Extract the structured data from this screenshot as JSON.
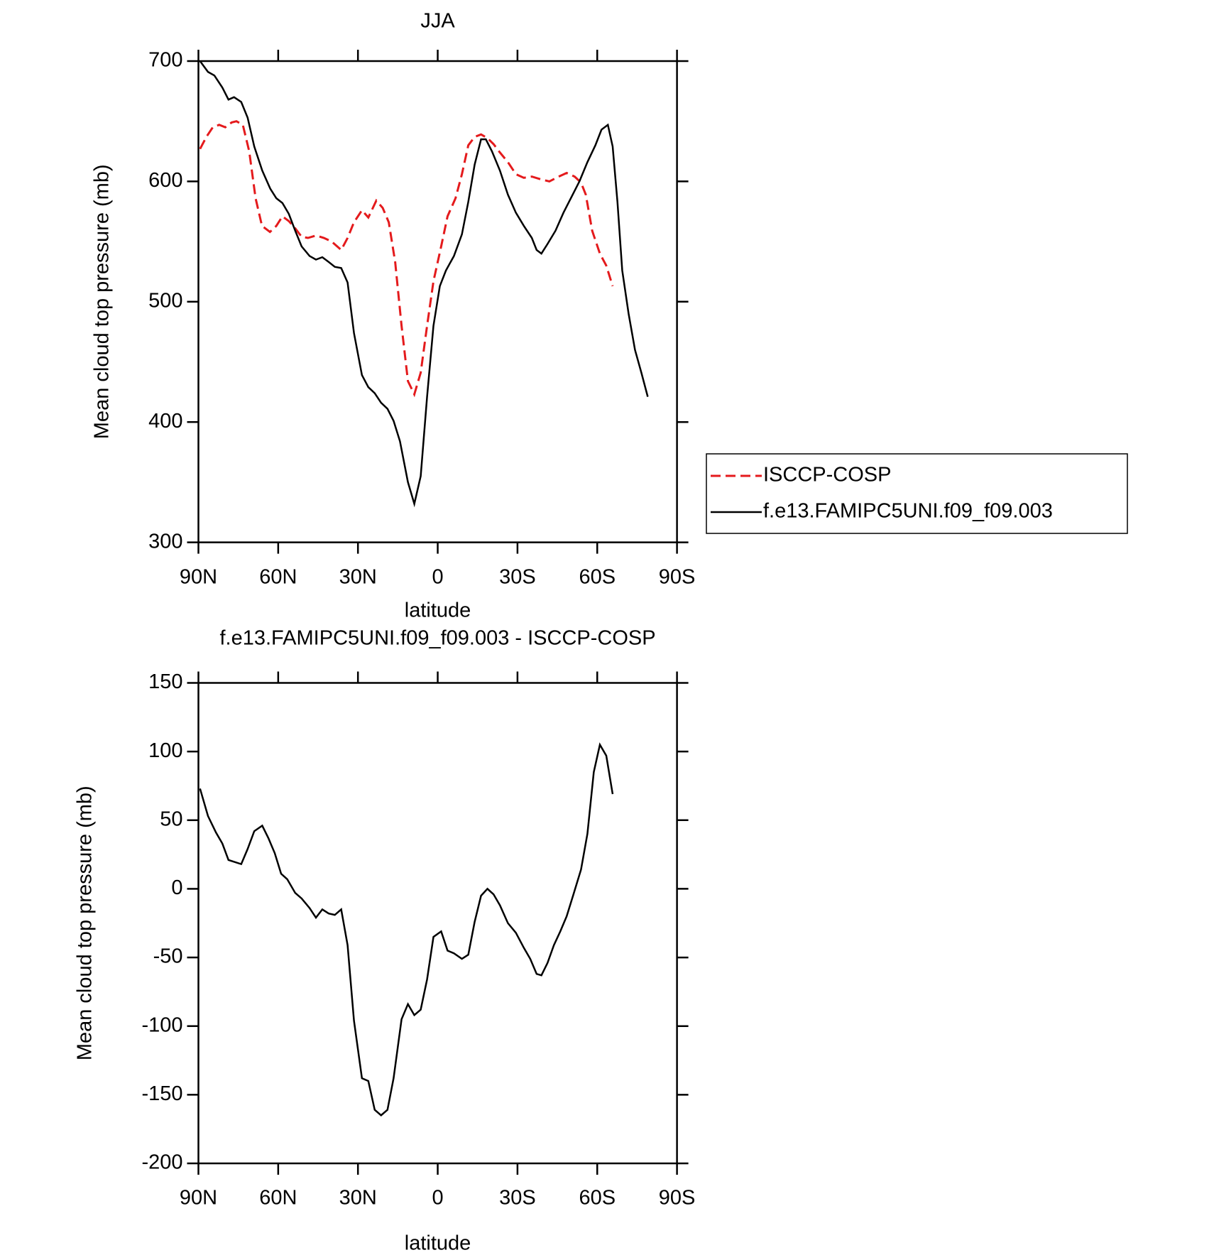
{
  "chart_data": [
    {
      "type": "line",
      "title": "JJA",
      "xlabel": "latitude",
      "ylabel": "Mean cloud top pressure (mb)",
      "xlim": [
        90,
        -90
      ],
      "xticks": [
        {
          "value": 90,
          "label": "90N"
        },
        {
          "value": 60,
          "label": "60N"
        },
        {
          "value": 30,
          "label": "30N"
        },
        0,
        {
          "value": -30,
          "label": "30S"
        },
        {
          "value": -60,
          "label": "60S"
        },
        {
          "value": -90,
          "label": "90S"
        }
      ],
      "ylim": [
        300,
        700
      ],
      "yticks": [
        300,
        400,
        500,
        600,
        700
      ],
      "legend": "right",
      "series": [
        {
          "name": "ISCCP-COSP",
          "color": "#e41a1c",
          "dash": true,
          "x": [
            89.4,
            87,
            84.6,
            82.2,
            79.9,
            77.5,
            75.7,
            73.3,
            70.9,
            68.5,
            66.1,
            63.1,
            60.7,
            58.4,
            56,
            53.6,
            51.2,
            48.8,
            45.8,
            42.8,
            39.9,
            36.3,
            33.9,
            31.5,
            28.5,
            26.1,
            23.1,
            20.7,
            18.4,
            16,
            13.6,
            11.2,
            8.8,
            6.4,
            4,
            1.6,
            -1.3,
            -3.7,
            -6.7,
            -9.1,
            -11.5,
            -13.9,
            -16.3,
            -18.7,
            -21,
            -23.4,
            -26.4,
            -29.4,
            -32.4,
            -35.4,
            -38.4,
            -42,
            -45.5,
            -48.5,
            -51.5,
            -53.9,
            -55.7,
            -58.1,
            -61,
            -63.4,
            -65.8
          ],
          "values": [
            627,
            637,
            645,
            647,
            645,
            649,
            650,
            647,
            625,
            586,
            563,
            558,
            563,
            571,
            567,
            561,
            554,
            553,
            555,
            553,
            550,
            543,
            553,
            566,
            576,
            570,
            584,
            578,
            566,
            533,
            480,
            434,
            423,
            441,
            480,
            517,
            546,
            571,
            586,
            606,
            630,
            637,
            639,
            636,
            631,
            624,
            616,
            606,
            603,
            604,
            602,
            600,
            604,
            607,
            604,
            599,
            589,
            559,
            540,
            530,
            513
          ]
        },
        {
          "name": "f.e13.FAMIPC5UNI.f09_f09.003",
          "color": "#000000",
          "dash": false,
          "x": [
            89.4,
            86.4,
            84,
            81,
            78.7,
            76.6,
            73.9,
            71.5,
            69,
            66,
            63,
            60.7,
            58.4,
            56,
            53.6,
            51.2,
            48.2,
            45.8,
            43.4,
            41,
            38.7,
            36.3,
            33.9,
            31.5,
            28.5,
            26.1,
            23.7,
            21.3,
            18.9,
            16.6,
            14.2,
            11.2,
            8.8,
            6.4,
            4,
            1.6,
            -0.8,
            -3.1,
            -6.1,
            -9.1,
            -11.5,
            -13.9,
            -16.3,
            -18.1,
            -20.4,
            -23.4,
            -26.4,
            -29.4,
            -32.4,
            -35.4,
            -37.2,
            -39,
            -41.3,
            -44.3,
            -47.3,
            -50.3,
            -53.3,
            -56.3,
            -59.3,
            -61.6,
            -64,
            -65.8,
            -67.6,
            -69.4,
            -71.8,
            -74.2,
            -76.6,
            -79
          ],
          "values": [
            700,
            691,
            688,
            678,
            668,
            670,
            666,
            653,
            629,
            609,
            594,
            586,
            582,
            573,
            559,
            546,
            538,
            535,
            537,
            533,
            529,
            528,
            516,
            474,
            439,
            429,
            424,
            416,
            411,
            401,
            384,
            350,
            332,
            355,
            421,
            480,
            513,
            526,
            538,
            556,
            583,
            614,
            635,
            635,
            625,
            609,
            589,
            574,
            563,
            553,
            543,
            540,
            548,
            559,
            574,
            587,
            600,
            616,
            630,
            643,
            647,
            629,
            583,
            526,
            490,
            460,
            441,
            421
          ]
        }
      ]
    },
    {
      "type": "line",
      "title": "f.e13.FAMIPC5UNI.f09_f09.003 - ISCCP-COSP",
      "xlabel": "latitude",
      "ylabel": "Mean cloud top pressure (mb)",
      "xlim": [
        90,
        -90
      ],
      "xticks": [
        {
          "value": 90,
          "label": "90N"
        },
        {
          "value": 60,
          "label": "60N"
        },
        {
          "value": 30,
          "label": "30N"
        },
        0,
        {
          "value": -30,
          "label": "30S"
        },
        {
          "value": -60,
          "label": "60S"
        },
        {
          "value": -90,
          "label": "90S"
        }
      ],
      "ylim": [
        -200,
        150
      ],
      "yticks": [
        -200,
        -150,
        -100,
        -50,
        0,
        50,
        100,
        150
      ],
      "series": [
        {
          "color": "#000000",
          "dash": false,
          "x": [
            89.4,
            86.4,
            83.4,
            81,
            78.7,
            73.9,
            71.5,
            69,
            66,
            63.7,
            61.3,
            58.9,
            56.6,
            53.6,
            51.2,
            48.2,
            45.8,
            43.4,
            41,
            38.7,
            36.3,
            33.9,
            31.5,
            28.5,
            26.1,
            23.7,
            21.3,
            18.9,
            16.6,
            13.6,
            11.2,
            8.8,
            6.4,
            4,
            1.6,
            -1.3,
            -3.7,
            -6.1,
            -9.1,
            -11.5,
            -13.9,
            -16.3,
            -18.7,
            -21,
            -23.4,
            -26.4,
            -29.4,
            -32.4,
            -34.8,
            -37.2,
            -39,
            -41.3,
            -43.7,
            -46.1,
            -48.5,
            -50.9,
            -53.9,
            -56.3,
            -58.7,
            -61,
            -63.4,
            -65.8
          ],
          "values": [
            73,
            53,
            41,
            33,
            21,
            18,
            29,
            42,
            46,
            37,
            26,
            11,
            7,
            -3,
            -7,
            -14,
            -21,
            -15,
            -18,
            -19,
            -15,
            -41,
            -96,
            -138,
            -140,
            -161,
            -165,
            -161,
            -138,
            -95,
            -84,
            -92,
            -88,
            -66,
            -35,
            -31,
            -45,
            -47,
            -51,
            -48,
            -24,
            -5,
            0,
            -4,
            -12,
            -25,
            -32,
            -43,
            -51,
            -62,
            -63,
            -54,
            -41,
            -31,
            -20,
            -5,
            14,
            40,
            85,
            105,
            97,
            69
          ]
        }
      ]
    }
  ]
}
